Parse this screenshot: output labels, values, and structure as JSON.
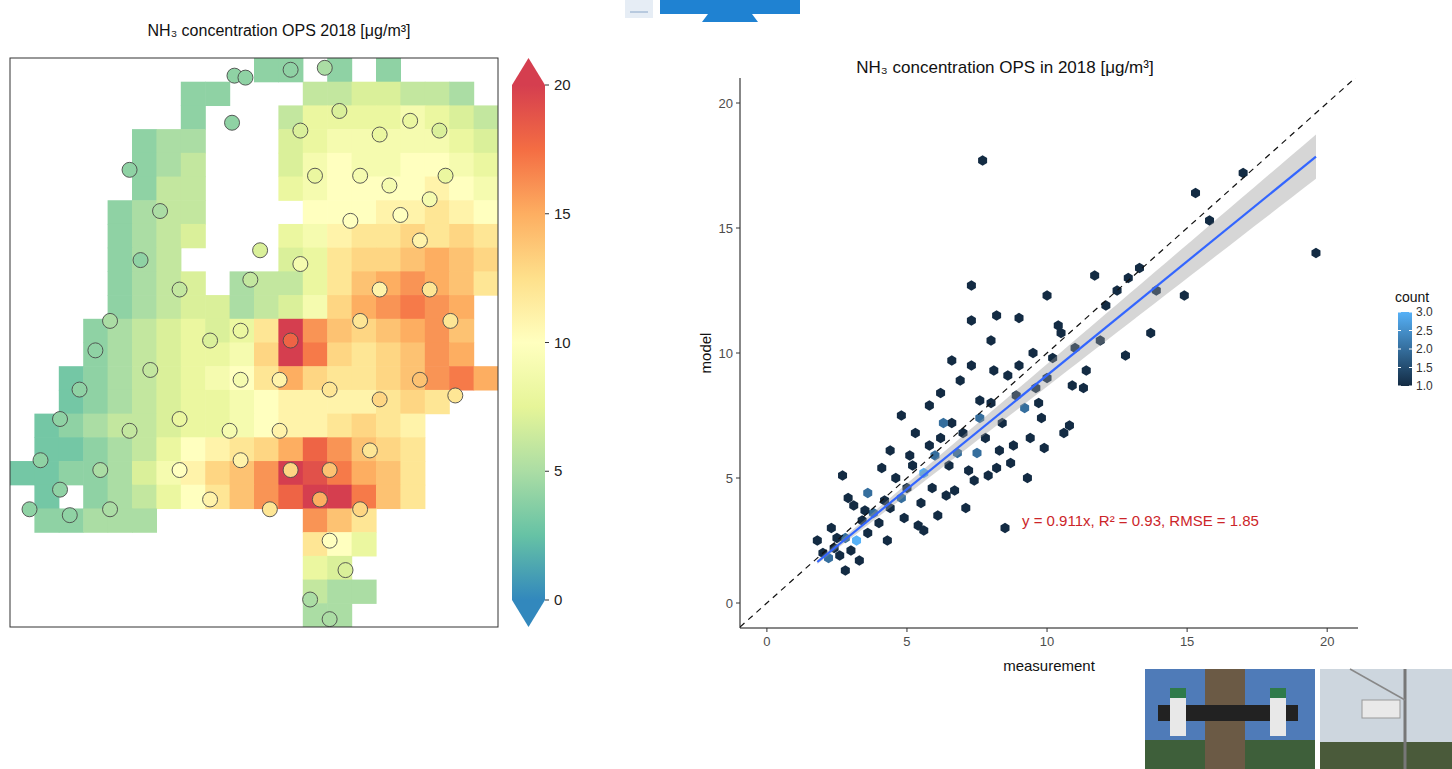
{
  "chart_data": [
    {
      "type": "map",
      "title": "NH₃ concentration OPS 2018 [μg/m³]",
      "xlim": [
        3.3,
        7.3
      ],
      "ylim": [
        50.7,
        53.6
      ],
      "cells": [
        [
          null,
          null,
          null,
          null,
          null,
          null,
          null,
          null,
          null,
          null,
          4,
          4,
          null,
          4,
          null,
          4,
          null,
          null,
          null,
          null
        ],
        [
          null,
          null,
          null,
          null,
          null,
          null,
          null,
          4,
          4,
          null,
          null,
          null,
          6,
          6,
          7,
          7,
          6,
          6,
          5,
          null
        ],
        [
          null,
          null,
          null,
          null,
          null,
          null,
          null,
          4,
          null,
          null,
          null,
          6,
          8,
          8,
          8,
          8,
          9,
          8,
          7,
          6
        ],
        [
          null,
          null,
          null,
          null,
          null,
          4,
          5,
          5,
          null,
          null,
          null,
          7,
          8,
          9,
          9,
          9,
          9,
          9,
          8,
          7
        ],
        [
          null,
          null,
          null,
          null,
          null,
          4,
          5,
          6,
          null,
          null,
          null,
          7,
          9,
          10,
          9,
          9,
          10,
          10,
          9,
          8
        ],
        [
          null,
          null,
          null,
          null,
          null,
          4,
          6,
          6,
          null,
          null,
          null,
          8,
          9,
          10,
          10,
          10,
          10,
          11,
          10,
          9
        ],
        [
          null,
          null,
          null,
          null,
          4,
          5,
          6,
          6,
          null,
          null,
          null,
          null,
          10,
          10,
          10,
          11,
          11,
          12,
          11,
          10
        ],
        [
          null,
          null,
          null,
          null,
          4,
          5,
          6,
          7,
          null,
          null,
          null,
          8,
          9,
          11,
          12,
          12,
          13,
          12,
          13,
          12
        ],
        [
          null,
          null,
          null,
          null,
          4,
          5,
          6,
          null,
          null,
          null,
          null,
          7,
          8,
          12,
          13,
          13,
          14,
          15,
          14,
          13
        ],
        [
          null,
          null,
          null,
          null,
          4,
          5,
          6,
          7,
          null,
          5,
          6,
          6,
          8,
          12,
          14,
          15,
          16,
          15,
          14,
          12
        ],
        [
          null,
          null,
          null,
          null,
          4,
          5,
          6,
          7,
          7,
          5,
          6,
          7,
          9,
          13,
          15,
          16,
          17,
          16,
          15,
          null
        ],
        [
          null,
          null,
          null,
          4,
          5,
          6,
          7,
          8,
          7,
          8,
          12,
          20,
          16,
          14,
          13,
          14,
          15,
          16,
          14,
          null
        ],
        [
          null,
          null,
          null,
          4,
          5,
          6,
          7,
          8,
          8,
          9,
          13,
          20,
          17,
          13,
          12,
          13,
          14,
          16,
          15,
          null
        ],
        [
          null,
          null,
          3,
          4,
          5,
          6,
          7,
          8,
          9,
          10,
          12,
          15,
          13,
          12,
          12,
          13,
          14,
          16,
          17,
          15
        ],
        [
          null,
          null,
          3,
          4,
          5,
          6,
          7,
          8,
          8,
          9,
          10,
          11,
          11,
          11,
          11,
          12,
          13,
          12,
          null,
          null
        ],
        [
          null,
          3,
          4,
          5,
          6,
          6,
          7,
          8,
          8,
          9,
          10,
          11,
          11,
          12,
          13,
          12,
          11,
          null,
          null,
          null
        ],
        [
          null,
          3,
          3,
          4,
          5,
          6,
          8,
          10,
          11,
          12,
          13,
          15,
          18,
          16,
          14,
          13,
          12,
          null,
          null,
          null
        ],
        [
          3,
          3,
          4,
          4,
          5,
          7,
          9,
          11,
          13,
          14,
          16,
          20,
          19,
          17,
          15,
          14,
          12,
          null,
          null,
          null
        ],
        [
          null,
          3,
          null,
          4,
          5,
          6,
          8,
          10,
          12,
          14,
          16,
          18,
          20,
          20,
          17,
          14,
          12,
          null,
          null,
          null
        ],
        [
          null,
          4,
          4,
          5,
          5,
          5,
          null,
          null,
          null,
          null,
          null,
          null,
          16,
          14,
          12,
          null,
          null,
          null,
          null,
          null
        ],
        [
          null,
          null,
          null,
          null,
          null,
          null,
          null,
          null,
          null,
          null,
          null,
          null,
          12,
          10,
          8,
          null,
          null,
          null,
          null,
          null
        ],
        [
          null,
          null,
          null,
          null,
          null,
          null,
          null,
          null,
          null,
          null,
          null,
          null,
          8,
          7,
          null,
          null,
          null,
          null,
          null,
          null
        ],
        [
          null,
          null,
          null,
          null,
          null,
          null,
          null,
          null,
          null,
          null,
          null,
          null,
          6,
          5,
          5,
          null,
          null,
          null,
          null,
          null
        ],
        [
          null,
          null,
          null,
          null,
          null,
          null,
          null,
          null,
          null,
          null,
          null,
          null,
          5,
          5,
          null,
          null,
          null,
          null,
          null,
          null
        ]
      ],
      "stations": {
        "lon": [
          5.14,
          5.23,
          5.6,
          5.88,
          5.12,
          5.68,
          6.0,
          6.33,
          6.58,
          6.82,
          5.8,
          6.17,
          6.41,
          6.74,
          6.87,
          6.09,
          6.5,
          6.66,
          4.28,
          4.53,
          4.37,
          4.69,
          5.35,
          5.27,
          5.68,
          6.33,
          6.74,
          6.91,
          6.17,
          5.6,
          5.19,
          4.94,
          4.12,
          4.0,
          3.87,
          4.45,
          5.19,
          5.51,
          5.92,
          6.33,
          6.66,
          6.95,
          3.71,
          3.55,
          3.46,
          3.71,
          4.04,
          4.28,
          4.69,
          5.1,
          5.51,
          4.69,
          5.19,
          5.6,
          5.92,
          6.25,
          4.94,
          5.43,
          5.84,
          6.17,
          5.92,
          6.05,
          5.76,
          5.92,
          4.12,
          3.79
        ],
        "lat": [
          53.51,
          53.5,
          53.54,
          53.55,
          53.27,
          53.23,
          53.33,
          53.21,
          53.28,
          53.23,
          53.0,
          53.0,
          52.95,
          52.88,
          53.0,
          52.77,
          52.8,
          52.67,
          53.03,
          52.82,
          52.57,
          52.42,
          52.62,
          52.47,
          52.55,
          52.42,
          52.42,
          52.26,
          52.26,
          52.16,
          52.21,
          52.16,
          52.26,
          52.11,
          51.91,
          52.01,
          51.96,
          51.96,
          51.91,
          51.86,
          51.96,
          51.88,
          51.76,
          51.55,
          51.3,
          51.4,
          51.5,
          51.7,
          51.76,
          51.7,
          51.7,
          51.5,
          51.55,
          51.5,
          51.5,
          51.6,
          51.35,
          51.3,
          51.35,
          51.3,
          51.14,
          50.99,
          50.84,
          50.74,
          51.3,
          51.27
        ],
        "values": [
          4,
          4,
          4,
          5,
          4,
          7,
          7,
          8,
          8,
          7,
          8,
          9,
          9,
          9,
          8,
          10,
          10,
          11,
          4,
          5,
          4,
          6,
          7,
          6,
          9,
          11,
          12,
          12,
          12,
          18,
          8,
          7,
          5,
          4,
          4,
          6,
          9,
          11,
          12,
          13,
          14,
          12,
          4,
          4,
          4,
          4,
          5,
          6,
          8,
          9,
          11,
          10,
          11,
          13,
          14,
          12,
          11,
          12,
          15,
          13,
          10,
          7,
          5,
          5,
          5,
          4
        ]
      },
      "color_range": [
        0,
        20
      ],
      "color_ticks": [
        0,
        5,
        10,
        15,
        20
      ]
    },
    {
      "type": "hexbin",
      "title": "NH₃ concentration OPS in 2018 [μg/m³]",
      "x_label": "measurement",
      "y_label": "model",
      "xlim": [
        -0.96,
        21.1
      ],
      "ylim": [
        -1,
        21
      ],
      "xticks": [
        0,
        5,
        10,
        15,
        20
      ],
      "yticks": [
        0,
        5,
        10,
        15,
        20
      ],
      "grid": false,
      "legend": "right",
      "x": [
        1.8,
        2.0,
        2.2,
        2.4,
        2.6,
        2.8,
        2.8,
        3.0,
        2.7,
        2.9,
        3.2,
        3.4,
        3.6,
        3.8,
        4.0,
        4.2,
        4.4,
        4.6,
        4.8,
        5.0,
        5.2,
        5.4,
        5.6,
        5.6,
        5.8,
        6.0,
        6.2,
        6.4,
        6.6,
        6.8,
        7.0,
        7.2,
        7.4,
        7.6,
        7.8,
        8.0,
        8.2,
        8.4,
        8.5,
        8.6,
        8.8,
        9.0,
        9.2,
        9.4,
        9.6,
        9.8,
        10.0,
        10.2,
        10.5,
        10.8,
        11.0,
        11.3,
        11.7,
        12.1,
        12.5,
        12.8,
        12.9,
        13.3,
        13.7,
        13.9,
        14.9,
        15.3,
        15.8,
        17.0,
        19.6,
        7.7,
        7.3,
        7.3,
        8.2,
        8.0,
        9.0,
        10.0,
        6.6,
        6.2,
        5.8,
        5.3,
        4.8,
        4.4,
        3.6,
        3.1,
        2.3,
        3.3,
        4.3,
        4.9,
        5.5,
        6.1,
        6.7,
        7.1,
        7.5,
        7.9,
        8.3,
        8.7,
        9.3,
        9.9,
        10.6,
        11.4,
        11.9,
        6.3,
        6.9,
        7.3,
        8.1,
        9.5,
        10.4,
        5.1,
        4.1,
        3.5,
        2.5,
        5.9,
        6.5,
        7.6,
        8.9,
        9.7,
        10.9
      ],
      "values": [
        2.5,
        2.0,
        1.8,
        2.2,
        1.9,
        1.3,
        2.6,
        2.1,
        5.1,
        4.2,
        2.5,
        3.3,
        2.8,
        3.6,
        3.2,
        4.1,
        3.8,
        5.0,
        4.2,
        4.6,
        5.5,
        3.1,
        2.9,
        5.2,
        6.3,
        5.9,
        6.6,
        4.3,
        7.2,
        6.0,
        6.8,
        5.3,
        4.9,
        7.4,
        6.6,
        8.0,
        5.4,
        7.2,
        3.0,
        9.1,
        6.3,
        9.5,
        7.8,
        6.6,
        8.6,
        7.4,
        9.0,
        9.8,
        10.8,
        7.1,
        10.2,
        8.6,
        13.1,
        11.9,
        12.5,
        9.9,
        13.0,
        13.4,
        10.8,
        12.5,
        12.3,
        16.4,
        15.3,
        17.2,
        14.0,
        17.7,
        12.7,
        11.3,
        11.5,
        10.5,
        11.4,
        12.3,
        9.7,
        8.4,
        7.9,
        6.8,
        7.5,
        6.1,
        4.4,
        3.9,
        3.0,
        1.7,
        2.5,
        3.4,
        4.0,
        3.5,
        4.5,
        3.8,
        6.0,
        5.1,
        6.1,
        5.6,
        5.0,
        6.2,
        6.8,
        9.3,
        10.5,
        7.2,
        8.9,
        9.5,
        9.3,
        10.0,
        11.1,
        5.9,
        5.4,
        3.7,
        2.6,
        4.6,
        5.5,
        8.1,
        8.3,
        8.0,
        8.7
      ],
      "counts": [
        1,
        1,
        2,
        1,
        1,
        1,
        2,
        1,
        1,
        1,
        3,
        1,
        1,
        2,
        1,
        1,
        1,
        1,
        2,
        1,
        1,
        1,
        1,
        3,
        1,
        2,
        1,
        1,
        1,
        2,
        1,
        1,
        1,
        2,
        1,
        1,
        1,
        1,
        1,
        1,
        1,
        1,
        2,
        1,
        1,
        1,
        1,
        1,
        1,
        1,
        1,
        1,
        1,
        1,
        1,
        1,
        1,
        1,
        1,
        1,
        1,
        1,
        1,
        1,
        1,
        1,
        1,
        1,
        1,
        1,
        1,
        1,
        1,
        1,
        1,
        1,
        1,
        1,
        2,
        1,
        1,
        1,
        1,
        1,
        1,
        1,
        1,
        1,
        2,
        1,
        1,
        1,
        1,
        1,
        1,
        1,
        1,
        2,
        1,
        1,
        1,
        1,
        1,
        1,
        1,
        1,
        1,
        1,
        1,
        1,
        1,
        1,
        1
      ],
      "count_title": "count",
      "count_range": [
        1,
        3
      ],
      "count_ticks": [
        {
          "value": 1,
          "label": "1.0"
        },
        {
          "value": 1.5,
          "label": "1.5"
        },
        {
          "value": 2,
          "label": "2.0"
        },
        {
          "value": 2.5,
          "label": "2.5"
        },
        {
          "value": 3,
          "label": "3.0"
        }
      ],
      "count_colors": [
        "#132b43",
        "#56b1f7"
      ],
      "identity_line": {
        "slope": 1,
        "line_style": "dashed"
      },
      "fit": {
        "slope": 0.911,
        "slope_se": 0.023,
        "color": "#3366ff"
      },
      "annotation": {
        "text": "y = 0.911x,  R² = 0.93,  RMSE = 1.85",
        "color": "#cc2529"
      }
    }
  ]
}
